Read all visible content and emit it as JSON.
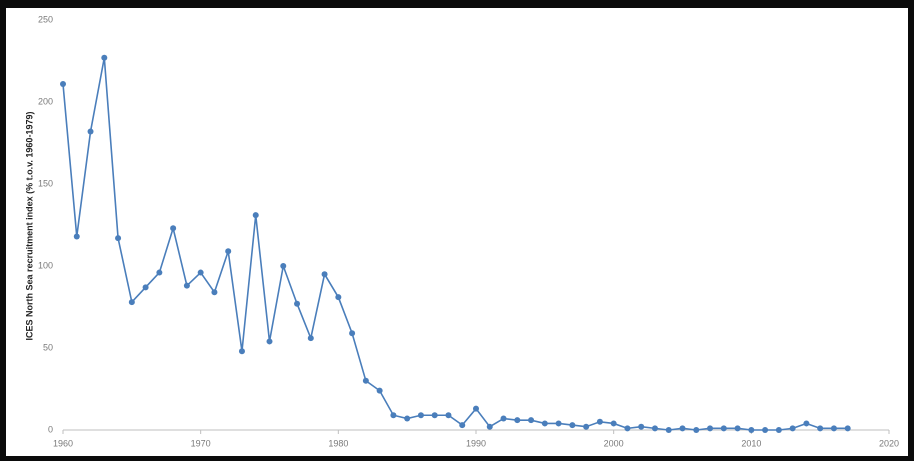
{
  "chart_data": {
    "type": "line",
    "y_label": "ICES North Sea recruitment index (% t.o.v. 1960-1979)",
    "x": [
      1960,
      1961,
      1962,
      1963,
      1964,
      1965,
      1966,
      1967,
      1968,
      1969,
      1970,
      1971,
      1972,
      1973,
      1974,
      1975,
      1976,
      1977,
      1978,
      1979,
      1980,
      1981,
      1982,
      1983,
      1984,
      1985,
      1986,
      1987,
      1988,
      1989,
      1990,
      1991,
      1992,
      1993,
      1994,
      1995,
      1996,
      1997,
      1998,
      1999,
      2000,
      2001,
      2002,
      2003,
      2004,
      2005,
      2006,
      2007,
      2008,
      2009,
      2010,
      2011,
      2012,
      2013,
      2014,
      2015,
      2016,
      2017
    ],
    "values": [
      211,
      118,
      182,
      227,
      117,
      78,
      87,
      96,
      123,
      88,
      96,
      84,
      109,
      48,
      131,
      54,
      100,
      77,
      56,
      95,
      81,
      59,
      30,
      24,
      9,
      7,
      9,
      9,
      9,
      3,
      13,
      2,
      7,
      6,
      6,
      4,
      4,
      3,
      2,
      5,
      4,
      1,
      2,
      1,
      0,
      1,
      0,
      1,
      1,
      1,
      0,
      0,
      0,
      1,
      4,
      1,
      1,
      1
    ],
    "color": "#4a7ebb",
    "xlim": [
      1960,
      2020
    ],
    "xticks": [
      1960,
      1970,
      1980,
      1990,
      2000,
      2010,
      2020
    ],
    "ylim": [
      0,
      250
    ],
    "yticks": [
      0,
      50,
      100,
      150,
      200,
      250
    ],
    "grid": false
  }
}
